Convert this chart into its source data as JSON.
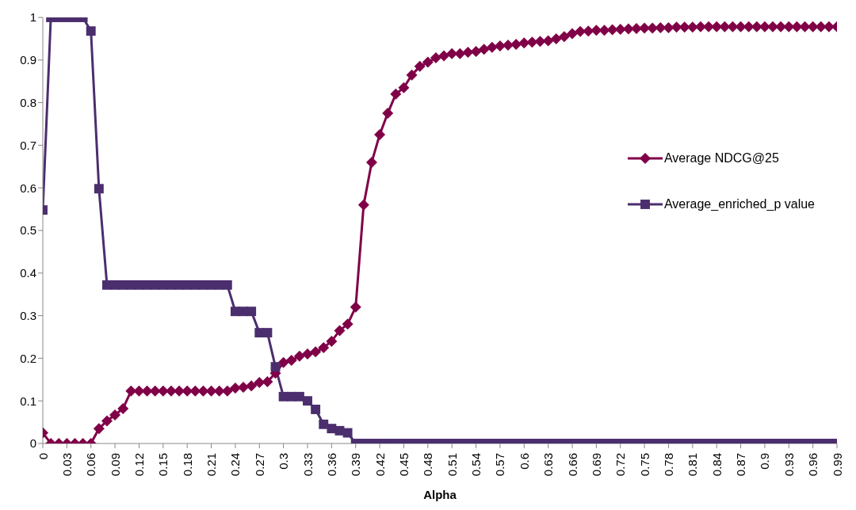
{
  "chart_data": {
    "type": "line",
    "xlabel": "Alpha",
    "x": [
      0,
      0.01,
      0.02,
      0.03,
      0.04,
      0.05,
      0.06,
      0.07,
      0.08,
      0.09,
      0.1,
      0.11,
      0.12,
      0.13,
      0.14,
      0.15,
      0.16,
      0.17,
      0.18,
      0.19,
      0.2,
      0.21,
      0.22,
      0.23,
      0.24,
      0.25,
      0.26,
      0.27,
      0.28,
      0.29,
      0.3,
      0.31,
      0.32,
      0.33,
      0.34,
      0.35,
      0.36,
      0.37,
      0.38,
      0.39,
      0.4,
      0.41,
      0.42,
      0.43,
      0.44,
      0.45,
      0.46,
      0.47,
      0.48,
      0.49,
      0.5,
      0.51,
      0.52,
      0.53,
      0.54,
      0.55,
      0.56,
      0.57,
      0.58,
      0.59,
      0.6,
      0.61,
      0.62,
      0.63,
      0.64,
      0.65,
      0.66,
      0.67,
      0.68,
      0.69,
      0.7,
      0.71,
      0.72,
      0.73,
      0.74,
      0.75,
      0.76,
      0.77,
      0.78,
      0.79,
      0.8,
      0.81,
      0.82,
      0.83,
      0.84,
      0.85,
      0.86,
      0.87,
      0.88,
      0.89,
      0.9,
      0.91,
      0.92,
      0.93,
      0.94,
      0.95,
      0.96,
      0.97,
      0.98,
      0.99
    ],
    "series": [
      {
        "name": "Average NDCG@25",
        "color": "#800048",
        "marker": "diamond",
        "values": [
          0.025,
          0,
          0,
          0,
          0,
          0,
          0,
          0.035,
          0.053,
          0.067,
          0.082,
          0.123,
          0.123,
          0.123,
          0.123,
          0.123,
          0.123,
          0.123,
          0.123,
          0.123,
          0.123,
          0.123,
          0.123,
          0.123,
          0.13,
          0.132,
          0.135,
          0.143,
          0.145,
          0.165,
          0.19,
          0.195,
          0.205,
          0.21,
          0.215,
          0.225,
          0.24,
          0.265,
          0.28,
          0.32,
          0.56,
          0.66,
          0.725,
          0.775,
          0.82,
          0.835,
          0.865,
          0.885,
          0.895,
          0.905,
          0.91,
          0.915,
          0.915,
          0.918,
          0.92,
          0.925,
          0.93,
          0.933,
          0.935,
          0.937,
          0.94,
          0.942,
          0.944,
          0.945,
          0.95,
          0.955,
          0.962,
          0.967,
          0.968,
          0.97,
          0.97,
          0.971,
          0.972,
          0.973,
          0.974,
          0.975,
          0.975,
          0.976,
          0.976,
          0.977,
          0.977,
          0.977,
          0.978,
          0.978,
          0.978,
          0.978,
          0.978,
          0.978,
          0.978,
          0.978,
          0.978,
          0.978,
          0.978,
          0.978,
          0.978,
          0.978,
          0.978,
          0.978,
          0.978,
          0.978
        ]
      },
      {
        "name": "Average_enriched_p value",
        "color": "#4b2e6e",
        "marker": "square",
        "values": [
          0.548,
          1,
          1,
          1,
          1,
          1,
          0.968,
          0.598,
          0.372,
          0.372,
          0.372,
          0.372,
          0.372,
          0.372,
          0.372,
          0.372,
          0.372,
          0.372,
          0.372,
          0.372,
          0.372,
          0.372,
          0.372,
          0.372,
          0.31,
          0.31,
          0.31,
          0.26,
          0.26,
          0.18,
          0.11,
          0.11,
          0.11,
          0.1,
          0.08,
          0.045,
          0.035,
          0.03,
          0.025,
          0,
          0,
          0,
          0,
          0,
          0,
          0,
          0,
          0,
          0,
          0,
          0,
          0,
          0,
          0,
          0,
          0,
          0,
          0,
          0,
          0,
          0,
          0,
          0,
          0,
          0,
          0,
          0,
          0,
          0,
          0,
          0,
          0,
          0,
          0,
          0,
          0,
          0,
          0,
          0,
          0,
          0,
          0,
          0,
          0,
          0,
          0,
          0,
          0,
          0,
          0,
          0,
          0,
          0,
          0,
          0,
          0,
          0,
          0,
          0,
          0
        ]
      }
    ],
    "xlim": [
      0,
      0.99
    ],
    "xticks": [
      0,
      0.03,
      0.06,
      0.09,
      0.12,
      0.15,
      0.18,
      0.21,
      0.24,
      0.27,
      0.3,
      0.33,
      0.36,
      0.39,
      0.42,
      0.45,
      0.48,
      0.51,
      0.54,
      0.57,
      0.6,
      0.63,
      0.66,
      0.69,
      0.72,
      0.75,
      0.78,
      0.81,
      0.84,
      0.87,
      0.9,
      0.93,
      0.96,
      0.99
    ],
    "ylim": [
      0,
      1
    ],
    "yticks": [
      0,
      0.1,
      0.2,
      0.3,
      0.4,
      0.5,
      0.6,
      0.7,
      0.8,
      0.9,
      1
    ],
    "grid": false,
    "legend": "right",
    "line_style": "solid"
  }
}
